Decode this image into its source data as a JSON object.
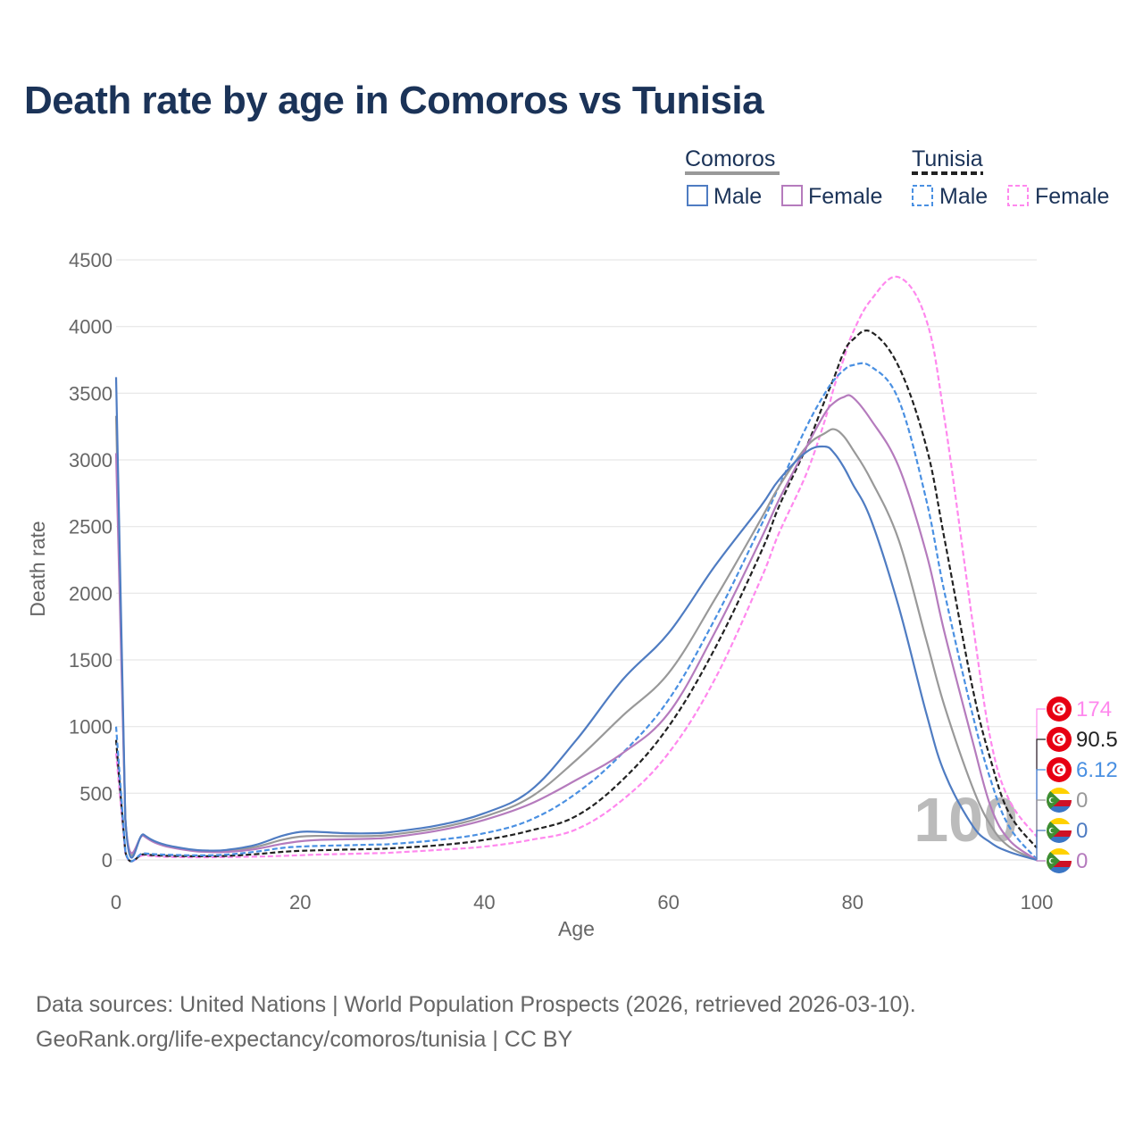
{
  "title": "Death rate by age in Comoros vs Tunisia",
  "footer": {
    "line1": "Data sources: United Nations | World Population Prospects (2026, retrieved 2026-03-10).",
    "line2": "GeoRank.org/life-expectancy/comoros/tunisia | CC BY"
  },
  "legend": {
    "groups": [
      {
        "name": "Comoros",
        "style": "solid",
        "color": "#999999",
        "items": [
          {
            "label": "Male",
            "color": "#4f7cc2"
          },
          {
            "label": "Female",
            "color": "#b57bbd"
          }
        ]
      },
      {
        "name": "Tunisia",
        "style": "dashed",
        "color": "#222222",
        "items": [
          {
            "label": "Male",
            "color": "#4a90e2"
          },
          {
            "label": "Female",
            "color": "#ff88ee"
          }
        ]
      }
    ]
  },
  "colors": {
    "comoros_male": "#4f7cc2",
    "comoros_female": "#b57bbd",
    "comoros_total": "#999999",
    "tunisia_male": "#4a90e2",
    "tunisia_female": "#ff88ee",
    "tunisia_total": "#222222",
    "flag_tunisia": "#e70013"
  },
  "watermark": "100",
  "chart_data": {
    "type": "line",
    "title": "Death rate by age in Comoros vs Tunisia",
    "xlabel": "Age",
    "ylabel": "Death rate",
    "xlim": [
      0,
      100
    ],
    "ylim": [
      0,
      4500
    ],
    "xticks": [
      0,
      20,
      40,
      60,
      80,
      100
    ],
    "yticks": [
      0,
      500,
      1000,
      1500,
      2000,
      2500,
      3000,
      3500,
      4000,
      4500
    ],
    "x": [
      0,
      1,
      3,
      5,
      8,
      10,
      12,
      15,
      18,
      20,
      22,
      25,
      28,
      30,
      35,
      40,
      45,
      50,
      55,
      60,
      65,
      70,
      72,
      75,
      77,
      78,
      79,
      80,
      82,
      85,
      88,
      90,
      93,
      95,
      97,
      100
    ],
    "series": [
      {
        "name": "Comoros Male",
        "country": "Comoros",
        "sex": "Male",
        "dash": false,
        "color": "#4f7cc2",
        "values": [
          3620,
          320,
          190,
          120,
          80,
          70,
          75,
          110,
          180,
          210,
          210,
          200,
          200,
          210,
          260,
          350,
          520,
          900,
          1350,
          1700,
          2200,
          2650,
          2850,
          3060,
          3100,
          3050,
          2950,
          2820,
          2550,
          1900,
          1100,
          650,
          260,
          130,
          60,
          0
        ],
        "end_label": "0",
        "flag": "comoros"
      },
      {
        "name": "Comoros Female",
        "country": "Comoros",
        "sex": "Female",
        "dash": false,
        "color": "#b57bbd",
        "values": [
          3050,
          310,
          180,
          110,
          70,
          60,
          60,
          80,
          120,
          140,
          150,
          155,
          160,
          170,
          220,
          300,
          420,
          600,
          800,
          1100,
          1700,
          2400,
          2700,
          3100,
          3350,
          3430,
          3470,
          3470,
          3300,
          2950,
          2300,
          1700,
          900,
          400,
          150,
          0
        ],
        "end_label": "0",
        "flag": "comoros"
      },
      {
        "name": "Comoros Total",
        "country": "Comoros",
        "sex": "Total",
        "dash": false,
        "color": "#999999",
        "values": [
          3330,
          315,
          185,
          115,
          75,
          65,
          68,
          95,
          150,
          175,
          180,
          178,
          180,
          190,
          240,
          325,
          470,
          750,
          1080,
          1400,
          1950,
          2550,
          2800,
          3100,
          3200,
          3230,
          3180,
          3080,
          2850,
          2400,
          1650,
          1150,
          550,
          260,
          100,
          0
        ],
        "end_label": "0",
        "flag": "comoros"
      },
      {
        "name": "Tunisia Male",
        "country": "Tunisia",
        "sex": "Male",
        "dash": true,
        "color": "#4a90e2",
        "values": [
          1000,
          70,
          50,
          40,
          35,
          35,
          40,
          60,
          90,
          100,
          105,
          110,
          115,
          120,
          150,
          200,
          300,
          500,
          800,
          1200,
          1800,
          2500,
          2800,
          3250,
          3500,
          3600,
          3670,
          3710,
          3700,
          3450,
          2700,
          2000,
          1100,
          600,
          250,
          6.12
        ],
        "end_label": "6.12",
        "flag": "tunisia"
      },
      {
        "name": "Tunisia Female",
        "country": "Tunisia",
        "sex": "Female",
        "dash": true,
        "color": "#ff88ee",
        "values": [
          800,
          55,
          35,
          25,
          20,
          20,
          22,
          25,
          30,
          35,
          40,
          45,
          50,
          55,
          75,
          100,
          150,
          230,
          450,
          800,
          1350,
          2100,
          2450,
          2900,
          3300,
          3550,
          3750,
          3950,
          4200,
          4370,
          4050,
          3300,
          1800,
          900,
          450,
          174
        ],
        "end_label": "174",
        "flag": "tunisia"
      },
      {
        "name": "Tunisia Total",
        "country": "Tunisia",
        "sex": "Total",
        "dash": true,
        "color": "#222222",
        "values": [
          900,
          62,
          42,
          32,
          28,
          28,
          30,
          42,
          60,
          68,
          72,
          78,
          82,
          88,
          110,
          150,
          220,
          330,
          600,
          1000,
          1580,
          2300,
          2650,
          3100,
          3450,
          3620,
          3800,
          3900,
          3960,
          3700,
          3100,
          2400,
          1300,
          750,
          350,
          90.5
        ],
        "end_label": "90.5",
        "flag": "tunisia"
      }
    ]
  }
}
